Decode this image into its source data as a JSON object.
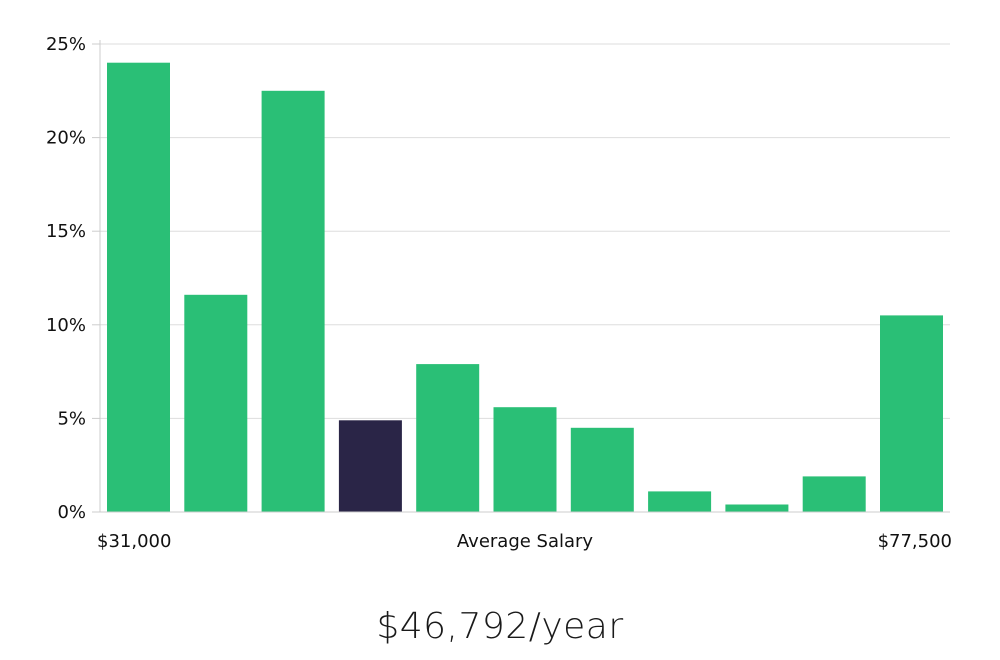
{
  "chart_data": {
    "type": "bar",
    "title": "",
    "xlabel": "Average Salary",
    "ylabel": "",
    "x_min_label": "$31,000",
    "x_max_label": "$77,500",
    "ylim": [
      0,
      25
    ],
    "yticks": [
      0,
      5,
      10,
      15,
      20,
      25
    ],
    "ytick_labels": [
      "0%",
      "5%",
      "10%",
      "15%",
      "20%",
      "25%"
    ],
    "grid": true,
    "values": [
      24.0,
      11.6,
      22.5,
      4.9,
      7.9,
      5.6,
      4.5,
      1.1,
      0.4,
      1.9,
      10.5
    ],
    "highlight_index": 3,
    "colors": {
      "bar": "#2abf76",
      "highlight": "#2a2547",
      "grid": "#dddddd",
      "axis": "#cccccc"
    }
  },
  "salary": {
    "caption": "$46,792/year"
  }
}
